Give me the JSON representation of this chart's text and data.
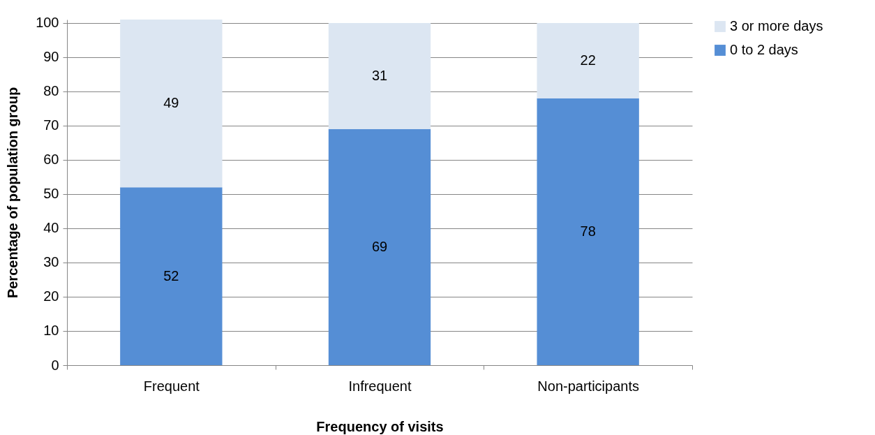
{
  "chart_data": {
    "type": "bar",
    "stacked": true,
    "xlabel": "Frequency of visits",
    "ylabel": "Percentage of population group",
    "categories": [
      "Frequent",
      "Infrequent",
      "Non-participants"
    ],
    "series": [
      {
        "name": "0 to 2 days",
        "color": "#558ed5",
        "values": [
          52,
          69,
          78
        ]
      },
      {
        "name": "3 or more days",
        "color": "#dce6f2",
        "values": [
          49,
          31,
          22
        ]
      }
    ],
    "ylim": [
      0,
      101
    ],
    "yticks": [
      0,
      10,
      20,
      30,
      40,
      50,
      60,
      70,
      80,
      90,
      100
    ],
    "grid": "y",
    "legend": "right",
    "data_labels": true
  }
}
